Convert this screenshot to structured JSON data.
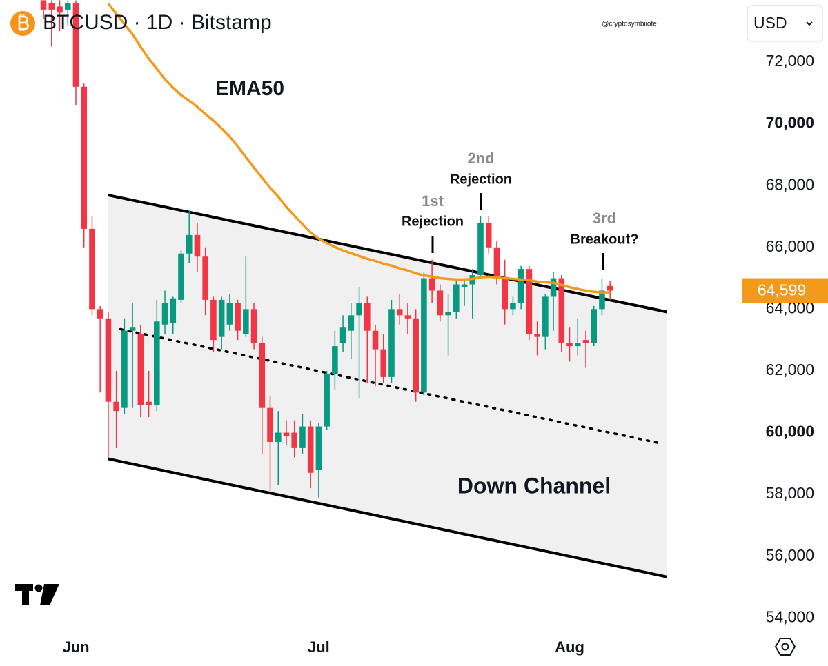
{
  "chart_data": {
    "type": "candlestick",
    "title": "BTCUSD · 1D · Bitstamp",
    "watermark": "@cryptosymbiiote",
    "currency": "USD",
    "categories": [
      null,
      null,
      null,
      null,
      "Jun",
      null,
      null,
      null,
      null,
      null,
      null,
      null,
      null,
      null,
      null,
      null,
      null,
      null,
      null,
      null,
      null,
      null,
      null,
      null,
      null,
      null,
      null,
      null,
      null,
      null,
      null,
      null,
      null,
      null,
      "Jul",
      null,
      null,
      null,
      null,
      null,
      null,
      null,
      null,
      null,
      null,
      null,
      null,
      null,
      null,
      null,
      null,
      null,
      null,
      null,
      null,
      null,
      null,
      null,
      null,
      null,
      null,
      null,
      null,
      null,
      null,
      "Aug",
      null,
      null,
      null,
      null,
      null
    ],
    "up_color": "#089981",
    "down_color": "#f23645",
    "open": [
      74000,
      73900,
      73800,
      73700,
      73900,
      71200,
      66600,
      64000,
      63700,
      61000,
      60800,
      63300,
      63200,
      61000,
      60900,
      63500,
      63550,
      64300,
      65800,
      66400,
      65700,
      64300,
      63100,
      63500,
      64200,
      63200,
      64000,
      62900,
      60800,
      59700,
      60000,
      60000,
      59500,
      60200,
      58800,
      60200,
      61900,
      62900,
      63300,
      63800,
      64200,
      63300,
      62700,
      61800,
      64000,
      63800,
      63700,
      61300,
      65000,
      64600,
      63800,
      63900,
      64700,
      64800,
      65100,
      66800,
      66000,
      65000,
      64000,
      64200,
      65300,
      63200,
      63100,
      64400,
      65000,
      62900,
      62800,
      63000,
      62900,
      64000,
      64750
    ],
    "high": [
      74000,
      74000,
      74000,
      74000,
      74000,
      71300,
      67000,
      64100,
      63900,
      62000,
      63700,
      64200,
      63500,
      62000,
      64300,
      64600,
      64400,
      65900,
      67200,
      66800,
      66000,
      64400,
      64400,
      64500,
      64300,
      65700,
      64200,
      63100,
      61200,
      60700,
      60400,
      60400,
      60600,
      60400,
      60300,
      62000,
      63300,
      63800,
      64200,
      64700,
      64400,
      63500,
      63200,
      64300,
      64500,
      64200,
      64000,
      65200,
      65600,
      64800,
      64500,
      64900,
      64900,
      65300,
      67000,
      67000,
      66200,
      65600,
      64400,
      65400,
      65400,
      63600,
      64500,
      65200,
      65100,
      63400,
      63700,
      63300,
      64100,
      65000,
      64900
    ],
    "low": [
      73400,
      72500,
      73000,
      73200,
      70600,
      66000,
      63800,
      61300,
      59200,
      59500,
      60600,
      60800,
      60500,
      60500,
      60700,
      63200,
      63200,
      64200,
      65500,
      65200,
      63800,
      62600,
      62700,
      63300,
      63000,
      63100,
      62700,
      59300,
      58100,
      58300,
      59600,
      59200,
      59300,
      58200,
      57900,
      60100,
      61400,
      62600,
      62400,
      61100,
      61600,
      61500,
      61600,
      61600,
      63500,
      63200,
      61000,
      61200,
      64200,
      63600,
      62500,
      63700,
      64100,
      63700,
      65000,
      65800,
      64800,
      63500,
      63800,
      64000,
      63000,
      62500,
      62700,
      63300,
      62600,
      62300,
      62500,
      62100,
      62800,
      63800,
      64300
    ],
    "close": [
      73700,
      73700,
      73600,
      73900,
      71200,
      66600,
      64000,
      63700,
      61000,
      60700,
      63300,
      63400,
      60900,
      60900,
      63600,
      64200,
      64350,
      65800,
      66400,
      65700,
      64300,
      63000,
      64300,
      64200,
      63300,
      64000,
      62900,
      60800,
      59700,
      60000,
      59900,
      59500,
      60200,
      58700,
      60200,
      61900,
      62800,
      63400,
      63800,
      64200,
      63300,
      62700,
      61800,
      64000,
      63800,
      63700,
      61300,
      65000,
      64600,
      63800,
      63900,
      64800,
      64800,
      65100,
      66800,
      66000,
      65000,
      64000,
      64200,
      65300,
      63200,
      63100,
      64400,
      65000,
      62900,
      62800,
      62900,
      62900,
      64000,
      64600,
      64599
    ],
    "series": [
      {
        "name": "EMA50",
        "color": "#f39a1b",
        "values": [
          null,
          null,
          null,
          null,
          null,
          null,
          null,
          null,
          73900,
          73560,
          73230,
          72900,
          72490,
          72110,
          71780,
          71440,
          71170,
          70930,
          70750,
          70550,
          70320,
          70100,
          69850,
          69590,
          69270,
          68920,
          68580,
          68250,
          67930,
          67640,
          67310,
          67020,
          66750,
          66480,
          66280,
          66140,
          66010,
          65900,
          65810,
          65720,
          65630,
          65560,
          65470,
          65410,
          65320,
          65250,
          65160,
          65090,
          65050,
          65000,
          64980,
          64960,
          64960,
          64980,
          65030,
          65050,
          65030,
          65000,
          64980,
          64960,
          64940,
          64890,
          64870,
          64850,
          64780,
          64710,
          64650,
          64600,
          64560,
          64540,
          64540
        ]
      }
    ],
    "last_price": {
      "value": 64599,
      "label": "64,599"
    },
    "trendlines": [
      {
        "x": [
          8,
          77
        ],
        "values": [
          67690,
          63910
        ],
        "style": "solid"
      },
      {
        "x": [
          8,
          77
        ],
        "values": [
          59150,
          55330
        ],
        "style": "solid"
      },
      {
        "x": [
          9.5,
          76.5
        ],
        "values": [
          63350,
          59640
        ],
        "style": "dotted"
      }
    ],
    "channel_fill": "#f0f0f0",
    "channel_label": "Down Channel",
    "annotations": [
      {
        "ordinal": "1st",
        "text": "Rejection"
      },
      {
        "ordinal": "2nd",
        "text": "Rejection"
      },
      {
        "ordinal": "3rd",
        "text": "Breakout?"
      }
    ],
    "ylim": [
      53470,
      74010
    ],
    "yticks": [
      {
        "value": 54000,
        "label": "54,000"
      },
      {
        "value": 56000,
        "label": "56,000"
      },
      {
        "value": 58000,
        "label": "58,000"
      },
      {
        "value": 60000,
        "label": "60,000"
      },
      {
        "value": 62000,
        "label": "62,000"
      },
      {
        "value": 64000,
        "label": "64,000"
      },
      {
        "value": 66000,
        "label": "66,000"
      },
      {
        "value": 68000,
        "label": "68,000"
      },
      {
        "value": 70000,
        "label": "70,000"
      },
      {
        "value": 72000,
        "label": "72,000"
      }
    ]
  }
}
